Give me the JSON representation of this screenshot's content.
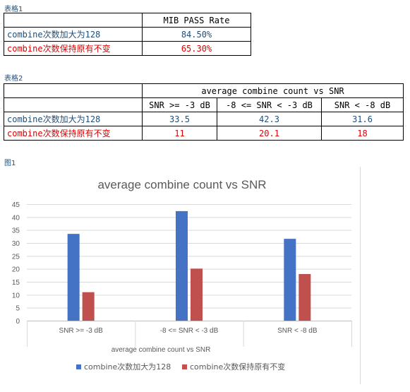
{
  "table1": {
    "caption": "表格1",
    "header": "MIB PASS Rate",
    "rows": [
      {
        "label_prefix": "combine",
        "label_cjk": "次数加大为",
        "label_suffix": "128",
        "value": "84.50%"
      },
      {
        "label_prefix": "combine",
        "label_cjk": "次数保持原有不变",
        "label_suffix": "",
        "value": "65.30%"
      }
    ]
  },
  "table2": {
    "caption": "表格2",
    "group_header": "average combine count vs SNR",
    "columns": [
      "SNR >= -3 dB",
      "-8 <= SNR < -3 dB",
      "SNR < -8 dB"
    ],
    "rows": [
      {
        "label_prefix": "combine",
        "label_cjk": "次数加大为",
        "label_suffix": "128",
        "values": [
          "33.5",
          "42.3",
          "31.6"
        ]
      },
      {
        "label_prefix": "combine",
        "label_cjk": "次数保持原有不变",
        "label_suffix": "",
        "values": [
          "11",
          "20.1",
          "18"
        ]
      }
    ]
  },
  "figure": {
    "caption": "图1"
  },
  "colors": {
    "label_blue": "#1f4e79",
    "label_red": "#e00000",
    "series1": "#4472c4",
    "series2": "#c0504d"
  },
  "chart_data": {
    "type": "bar",
    "title": "average combine count vs SNR",
    "xlabel": "average combine count vs SNR",
    "ylabel": "",
    "categories": [
      "SNR >= -3 dB",
      "-8 <= SNR < -3 dB",
      "SNR < -8 dB"
    ],
    "series": [
      {
        "name": "combine次数加大为128",
        "values": [
          33.5,
          42.3,
          31.6
        ]
      },
      {
        "name": "combine次数保持原有不变",
        "values": [
          11,
          20.1,
          18
        ]
      }
    ],
    "ylim": [
      0,
      45
    ],
    "yticks": [
      0,
      5,
      10,
      15,
      20,
      25,
      30,
      35,
      40,
      45
    ],
    "grid": true,
    "legend_position": "bottom"
  }
}
